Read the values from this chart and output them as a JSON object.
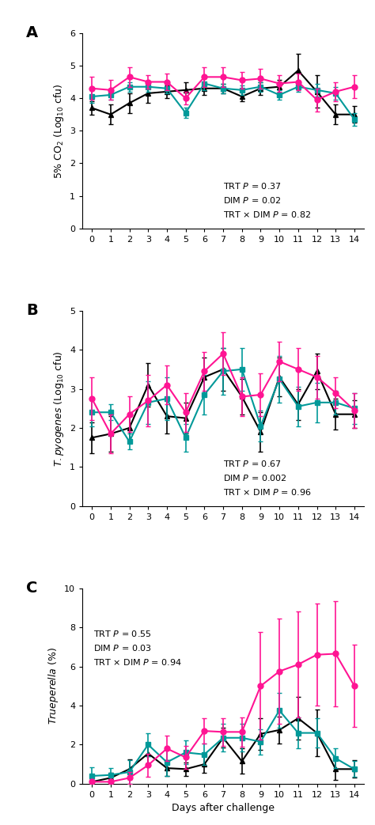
{
  "days": [
    0,
    1,
    2,
    3,
    4,
    5,
    6,
    7,
    8,
    9,
    10,
    11,
    12,
    13,
    14
  ],
  "panelA_control_y": [
    4.05,
    4.1,
    4.35,
    4.35,
    4.3,
    3.55,
    4.45,
    4.3,
    4.25,
    4.35,
    4.1,
    4.35,
    4.25,
    4.15,
    3.35
  ],
  "panelA_control_err": [
    0.2,
    0.15,
    0.15,
    0.15,
    0.15,
    0.15,
    0.2,
    0.15,
    0.15,
    0.15,
    0.15,
    0.15,
    0.2,
    0.2,
    0.2
  ],
  "panelA_low_y": [
    4.3,
    4.25,
    4.65,
    4.5,
    4.5,
    4.0,
    4.65,
    4.65,
    4.55,
    4.6,
    4.45,
    4.5,
    3.95,
    4.2,
    4.35
  ],
  "panelA_low_err": [
    0.35,
    0.3,
    0.3,
    0.2,
    0.25,
    0.2,
    0.3,
    0.3,
    0.25,
    0.3,
    0.25,
    0.25,
    0.35,
    0.3,
    0.35
  ],
  "panelA_high_y": [
    3.7,
    3.5,
    3.85,
    4.15,
    4.2,
    4.25,
    4.3,
    4.3,
    4.05,
    4.3,
    4.35,
    4.85,
    4.2,
    3.5,
    3.5
  ],
  "panelA_high_err": [
    0.2,
    0.3,
    0.3,
    0.3,
    0.2,
    0.25,
    0.2,
    0.15,
    0.15,
    0.2,
    0.2,
    0.5,
    0.5,
    0.3,
    0.25
  ],
  "panelB_control_y": [
    2.4,
    2.4,
    1.65,
    2.65,
    2.75,
    1.75,
    2.85,
    3.45,
    3.5,
    2.05,
    3.25,
    2.55,
    2.65,
    2.65,
    2.5
  ],
  "panelB_control_err": [
    0.35,
    0.2,
    0.2,
    0.55,
    0.55,
    0.35,
    0.5,
    0.6,
    0.55,
    0.4,
    0.6,
    0.5,
    0.5,
    0.3,
    0.4
  ],
  "panelB_low_y": [
    2.75,
    1.85,
    2.35,
    2.7,
    3.1,
    2.4,
    3.45,
    3.9,
    2.8,
    2.85,
    3.7,
    3.5,
    3.3,
    2.9,
    2.45
  ],
  "panelB_low_err": [
    0.55,
    0.5,
    0.45,
    0.65,
    0.5,
    0.5,
    0.5,
    0.55,
    0.5,
    0.55,
    0.5,
    0.55,
    0.55,
    0.4,
    0.45
  ],
  "panelB_high_y": [
    1.75,
    1.85,
    2.0,
    3.1,
    2.3,
    2.25,
    3.3,
    3.5,
    2.8,
    1.9,
    3.3,
    2.6,
    3.45,
    2.35,
    2.35
  ],
  "panelB_high_err": [
    0.4,
    0.45,
    0.35,
    0.55,
    0.45,
    0.4,
    0.5,
    0.55,
    0.45,
    0.5,
    0.5,
    0.4,
    0.45,
    0.4,
    0.35
  ],
  "panelC_control_y": [
    0.4,
    0.45,
    0.6,
    2.0,
    1.1,
    1.6,
    1.5,
    2.35,
    2.35,
    2.15,
    3.75,
    2.6,
    2.6,
    1.3,
    0.75
  ],
  "panelC_control_err": [
    0.45,
    0.35,
    0.6,
    0.6,
    0.7,
    0.6,
    0.55,
    0.7,
    0.7,
    0.65,
    0.9,
    0.8,
    0.75,
    0.5,
    0.4
  ],
  "panelC_low_y": [
    0.1,
    0.1,
    0.3,
    0.95,
    1.8,
    1.35,
    2.7,
    2.65,
    2.65,
    5.0,
    5.75,
    6.1,
    6.6,
    6.65,
    5.0
  ],
  "panelC_low_err": [
    0.15,
    0.15,
    0.3,
    0.6,
    0.65,
    0.6,
    0.65,
    0.7,
    0.75,
    2.75,
    2.7,
    2.7,
    2.6,
    2.7,
    2.1
  ],
  "panelC_high_y": [
    0.1,
    0.3,
    0.75,
    1.55,
    0.8,
    0.75,
    1.0,
    2.35,
    1.15,
    2.55,
    2.75,
    3.35,
    2.6,
    0.75,
    0.75
  ],
  "panelC_high_err": [
    0.1,
    0.25,
    0.5,
    0.5,
    0.4,
    0.35,
    0.45,
    0.5,
    0.65,
    0.8,
    0.7,
    1.1,
    1.2,
    0.55,
    0.45
  ],
  "color_control": "#009999",
  "color_low": "#FF1493",
  "color_high": "#000000",
  "panelA_annot_line1": "TRT P = 0.37",
  "panelA_annot_line2": "DIM P = 0.02",
  "panelA_annot_line3": "TRT x DIM P = 0.82",
  "panelB_annot_line1": "TRT P = 0.67",
  "panelB_annot_line2": "DIM P = 0.002",
  "panelB_annot_line3": "TRT x DIM P = 0.96",
  "panelC_annot_line1": "TRT P = 0.55",
  "panelC_annot_line2": "DIM P = 0.03",
  "panelC_annot_line3": "TRT x DIM P = 0.94",
  "xlabel": "Days after challenge",
  "panelA_ylim": [
    0,
    6
  ],
  "panelB_ylim": [
    0,
    5
  ],
  "panelC_ylim": [
    0,
    10
  ],
  "panelA_yticks": [
    0,
    1,
    2,
    3,
    4,
    5,
    6
  ],
  "panelB_yticks": [
    0,
    1,
    2,
    3,
    4,
    5
  ],
  "panelC_yticks": [
    0,
    2,
    4,
    6,
    8,
    10
  ]
}
